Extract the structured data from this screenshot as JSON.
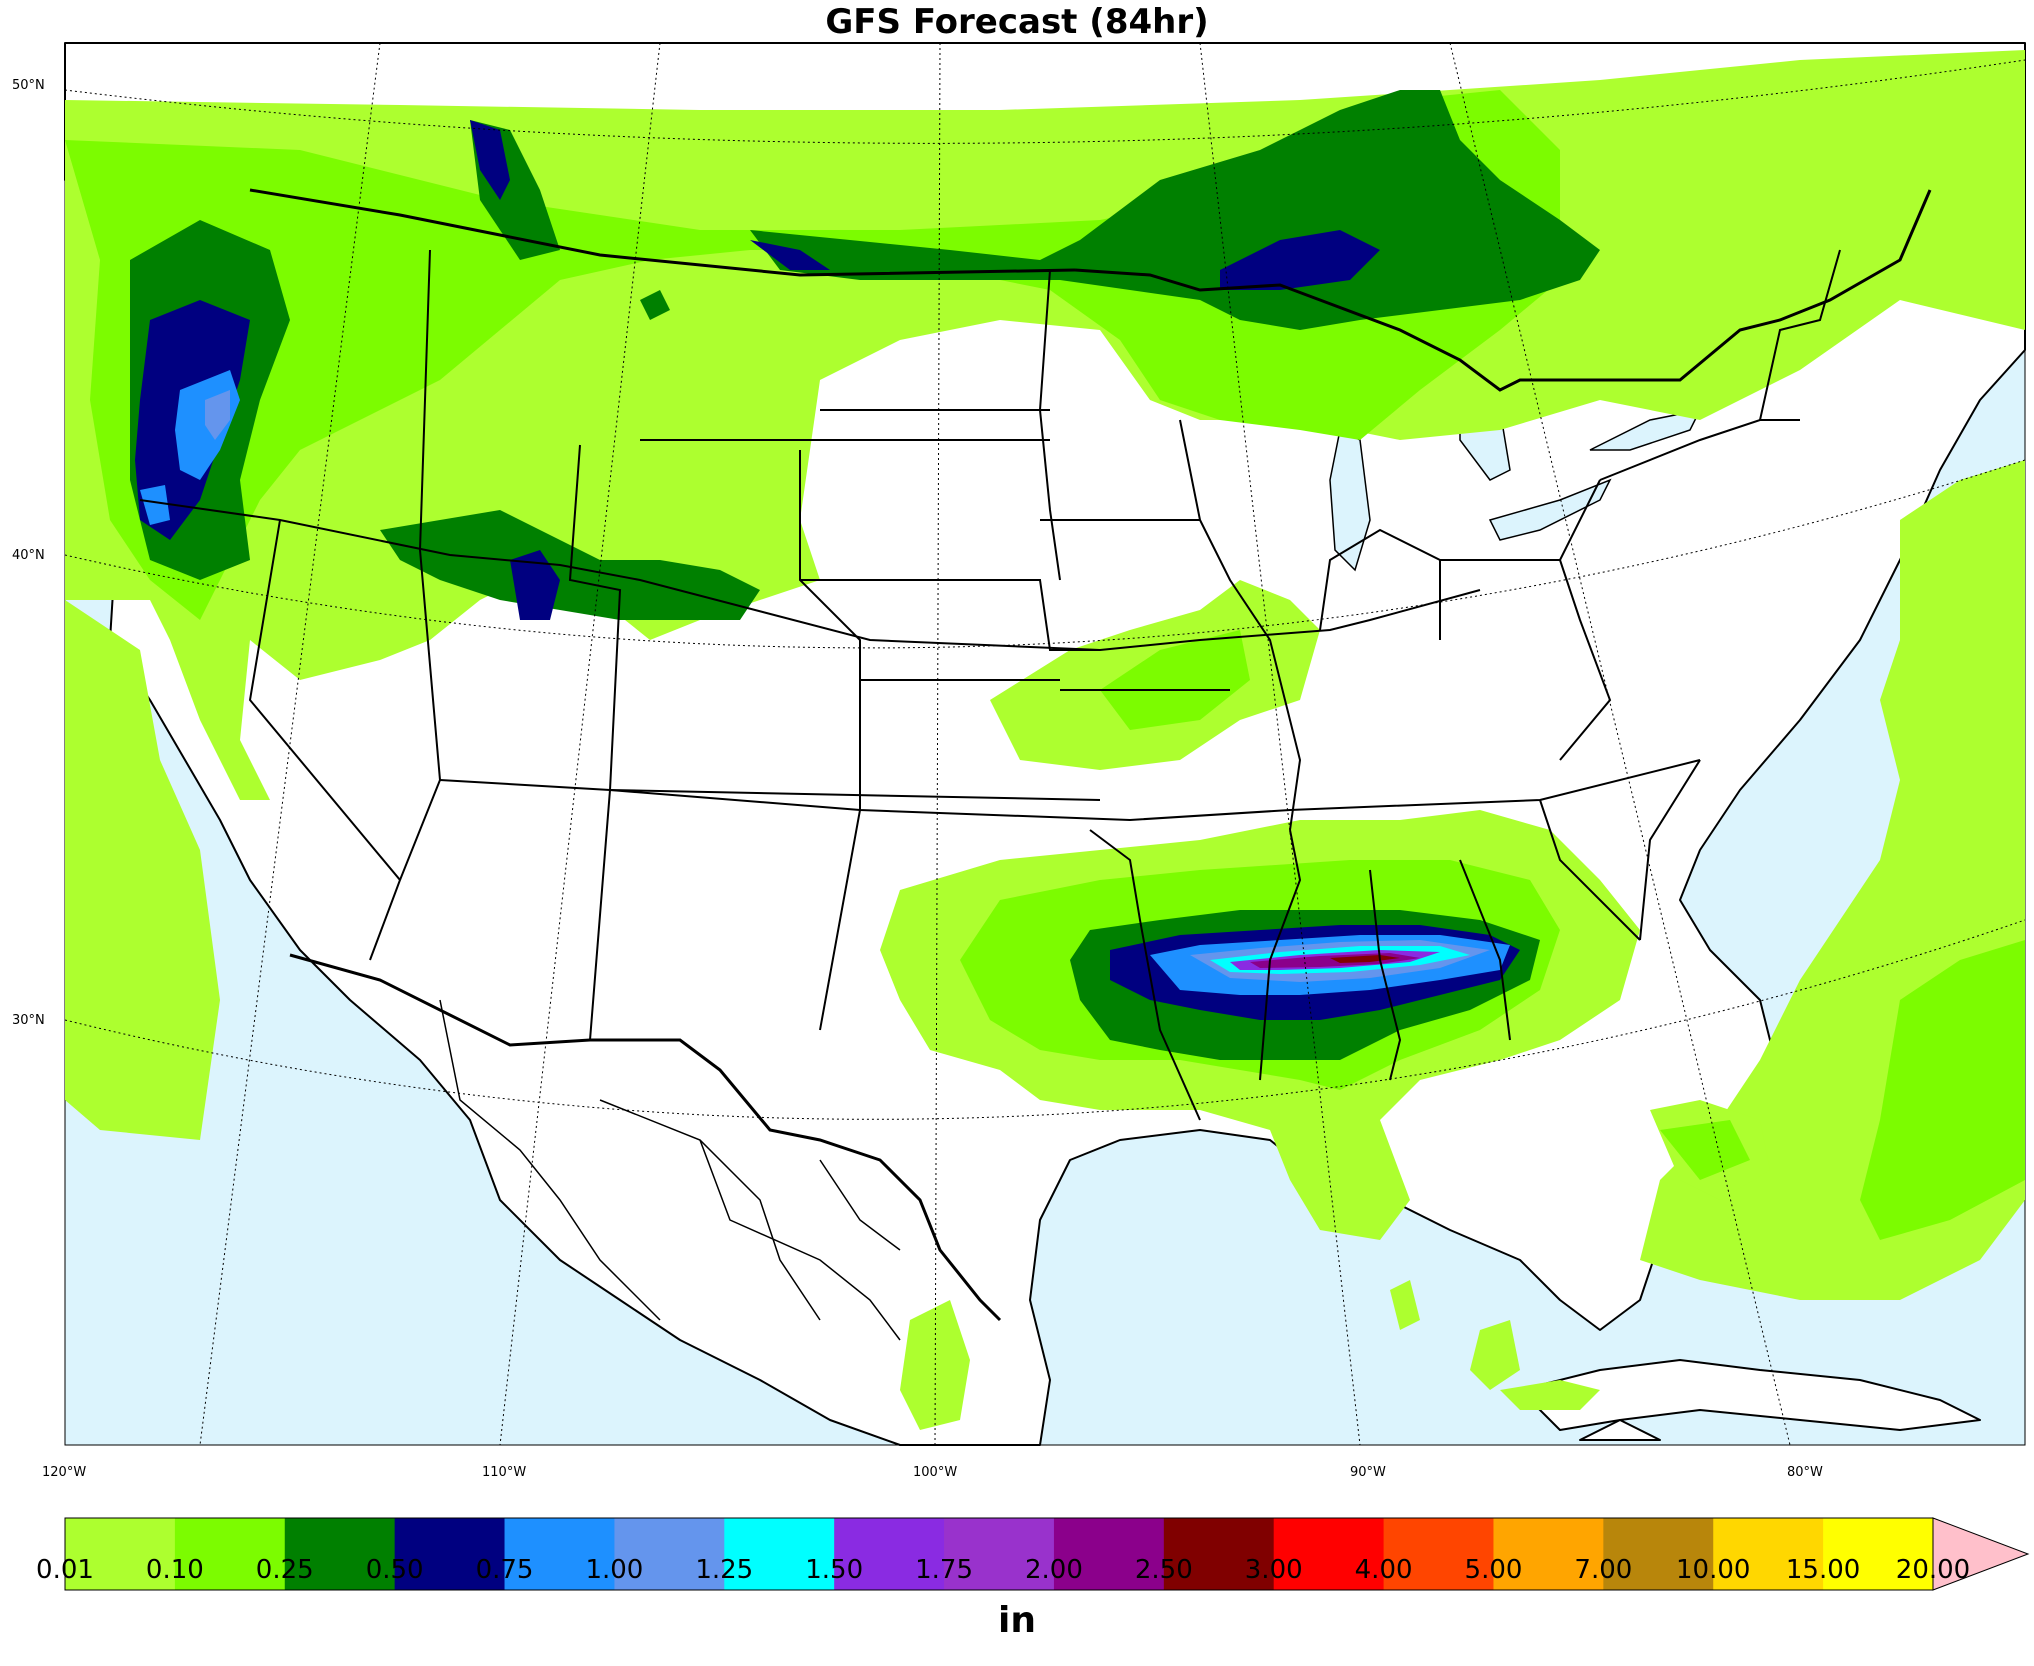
{
  "title": "GFS Forecast (84hr)",
  "map": {
    "projection": "lambert-conformal",
    "region": "Contiguous United States, southern Canada, northern Mexico",
    "colors": {
      "ocean": "#dcf4fd",
      "land": "#ffffff",
      "border": "#000000"
    },
    "lat_labels": [
      "50°N",
      "40°N",
      "30°N"
    ],
    "lon_labels": [
      "120°W",
      "110°W",
      "100°W",
      "90°W",
      "80°W"
    ]
  },
  "colorbar": {
    "units": "in",
    "levels": [
      "0.01",
      "0.10",
      "0.25",
      "0.50",
      "0.75",
      "1.00",
      "1.25",
      "1.50",
      "1.75",
      "2.00",
      "2.50",
      "3.00",
      "4.00",
      "5.00",
      "7.00",
      "10.00",
      "15.00",
      "20.00"
    ],
    "colors": [
      "#adff2f",
      "#7cfc00",
      "#008000",
      "#000080",
      "#1e90ff",
      "#6495ed",
      "#00ffff",
      "#8a2be2",
      "#9932cc",
      "#8b008b",
      "#800000",
      "#ff0000",
      "#ff4500",
      "#ffa500",
      "#b8860b",
      "#ffd700",
      "#ffff00"
    ],
    "extend_color": "#ffc0cb"
  },
  "precip_features": [
    {
      "area": "Pacific Northwest",
      "max_level": "1.00"
    },
    {
      "area": "Northern Tier / Great Lakes",
      "max_level": "0.75"
    },
    {
      "area": "Central Rockies (Utah/Colorado)",
      "max_level": "0.75"
    },
    {
      "area": "Mississippi–Alabama",
      "max_level": "3.00"
    },
    {
      "area": "Atlantic (offshore)",
      "max_level": "0.25"
    }
  ]
}
